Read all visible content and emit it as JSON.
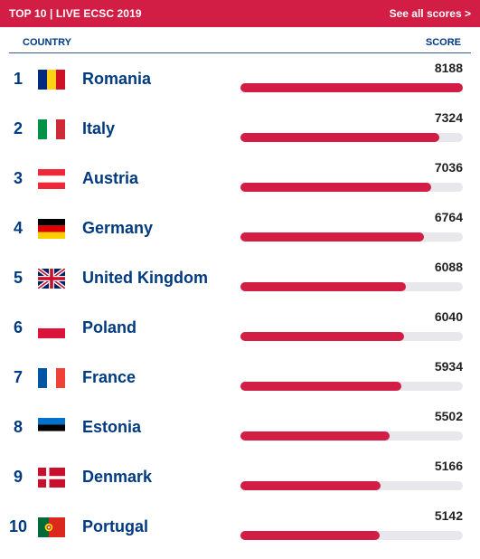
{
  "header": {
    "title": "TOP 10 | LIVE ECSC 2019",
    "link": "See all scores >"
  },
  "columns": {
    "country": "COUNTRY",
    "score": "SCORE"
  },
  "colors": {
    "accent": "#d21e44",
    "text": "#003a80"
  },
  "max_score": 8188,
  "rows": [
    {
      "rank": "1",
      "country": "Romania",
      "score": 8188,
      "flag": "romania-flag-icon"
    },
    {
      "rank": "2",
      "country": "Italy",
      "score": 7324,
      "flag": "italy-flag-icon"
    },
    {
      "rank": "3",
      "country": "Austria",
      "score": 7036,
      "flag": "austria-flag-icon"
    },
    {
      "rank": "4",
      "country": "Germany",
      "score": 6764,
      "flag": "germany-flag-icon"
    },
    {
      "rank": "5",
      "country": "United Kingdom",
      "score": 6088,
      "flag": "united-kingdom-flag-icon"
    },
    {
      "rank": "6",
      "country": "Poland",
      "score": 6040,
      "flag": "poland-flag-icon"
    },
    {
      "rank": "7",
      "country": "France",
      "score": 5934,
      "flag": "france-flag-icon"
    },
    {
      "rank": "8",
      "country": "Estonia",
      "score": 5502,
      "flag": "estonia-flag-icon"
    },
    {
      "rank": "9",
      "country": "Denmark",
      "score": 5166,
      "flag": "denmark-flag-icon"
    },
    {
      "rank": "10",
      "country": "Portugal",
      "score": 5142,
      "flag": "portugal-flag-icon"
    }
  ]
}
